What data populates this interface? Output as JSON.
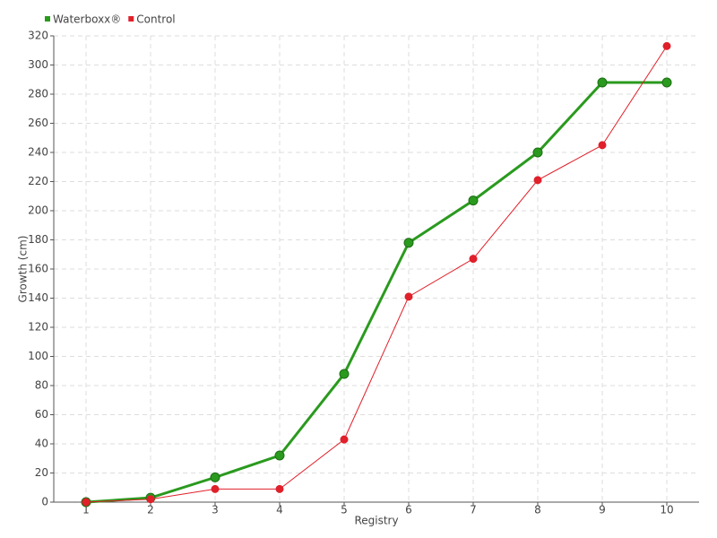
{
  "chart_data": {
    "type": "line",
    "x_label": "Registry",
    "y_label": "Growth (cm)",
    "categories": [
      "1",
      "2",
      "3",
      "4",
      "5",
      "6",
      "7",
      "8",
      "9",
      "10"
    ],
    "series": [
      {
        "name": "Waterboxx®",
        "color": "#2a9a1e",
        "values": [
          0,
          3,
          17,
          32,
          88,
          178,
          207,
          240,
          288,
          288
        ]
      },
      {
        "name": "Control",
        "color": "#e0202a",
        "values": [
          0,
          2,
          9,
          9,
          43,
          141,
          167,
          221,
          245,
          313
        ]
      }
    ],
    "ylim": [
      0,
      320
    ],
    "yticks": [
      0,
      20,
      40,
      60,
      80,
      100,
      120,
      140,
      160,
      180,
      200,
      220,
      240,
      260,
      280,
      300,
      320
    ],
    "grid": true,
    "legend": "top-left"
  }
}
